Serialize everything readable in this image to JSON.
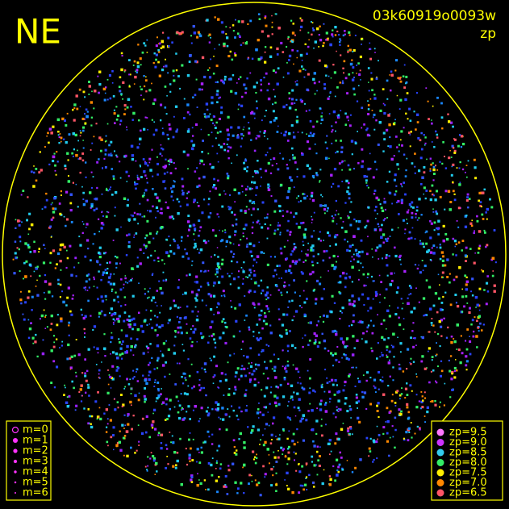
{
  "header": {
    "label": "NE",
    "id": "03k60919o0093w",
    "subtitle": "zp"
  },
  "legend_m": {
    "entries": [
      "m=0",
      "m=1",
      "m=2",
      "m=3",
      "m=4",
      "m=5",
      "m=6"
    ]
  },
  "legend_zp": {
    "entries": [
      {
        "label": "zp=9.5",
        "color": "#ff77ff"
      },
      {
        "label": "zp=9.0",
        "color": "#cc33ff"
      },
      {
        "label": "zp=8.5",
        "color": "#33ccee"
      },
      {
        "label": "zp=8.0",
        "color": "#33ee66"
      },
      {
        "label": "zp=7.5",
        "color": "#ffee00"
      },
      {
        "label": "zp=7.0",
        "color": "#ff8800"
      },
      {
        "label": "zp=6.5",
        "color": "#ff5566"
      }
    ]
  }
}
